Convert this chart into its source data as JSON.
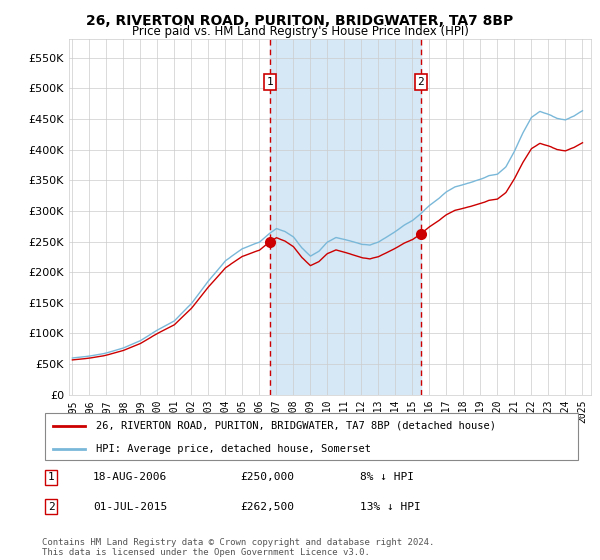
{
  "title": "26, RIVERTON ROAD, PURITON, BRIDGWATER, TA7 8BP",
  "subtitle": "Price paid vs. HM Land Registry's House Price Index (HPI)",
  "ylabel_ticks": [
    "£0",
    "£50K",
    "£100K",
    "£150K",
    "£200K",
    "£250K",
    "£300K",
    "£350K",
    "£400K",
    "£450K",
    "£500K",
    "£550K"
  ],
  "ylim": [
    0,
    580000
  ],
  "yticks": [
    0,
    50000,
    100000,
    150000,
    200000,
    250000,
    300000,
    350000,
    400000,
    450000,
    500000,
    550000
  ],
  "legend_line1": "26, RIVERTON ROAD, PURITON, BRIDGWATER, TA7 8BP (detached house)",
  "legend_line2": "HPI: Average price, detached house, Somerset",
  "annotation1_label": "1",
  "annotation1_date": "18-AUG-2006",
  "annotation1_price": "£250,000",
  "annotation1_hpi": "8% ↓ HPI",
  "annotation2_label": "2",
  "annotation2_date": "01-JUL-2015",
  "annotation2_price": "£262,500",
  "annotation2_hpi": "13% ↓ HPI",
  "footer": "Contains HM Land Registry data © Crown copyright and database right 2024.\nThis data is licensed under the Open Government Licence v3.0.",
  "hpi_color": "#7ab8d9",
  "sale_color": "#cc0000",
  "vline_color": "#cc0000",
  "shade_color": "#d6e8f5",
  "bg_color": "#ffffff",
  "grid_color": "#cccccc",
  "sale1_x": 2006.63,
  "sale1_y": 250000,
  "sale2_x": 2015.5,
  "sale2_y": 262500,
  "xmin": 1994.8,
  "xmax": 2025.5
}
